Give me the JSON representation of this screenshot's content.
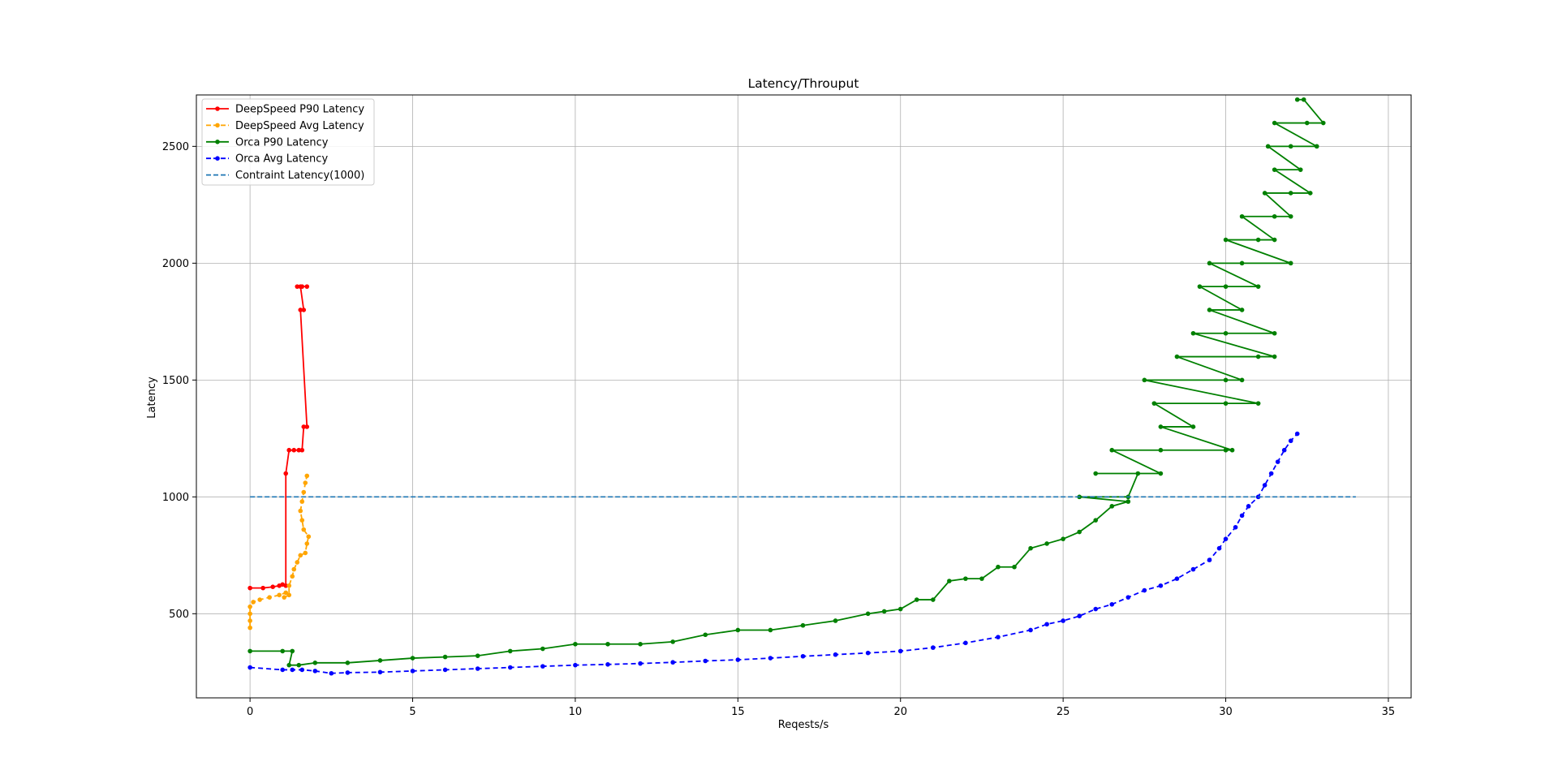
{
  "chart_data": {
    "type": "line",
    "title": "Latency/Throuput",
    "xlabel": "Reqests/s",
    "ylabel": "Latency",
    "xlim": [
      -1.65,
      35.7
    ],
    "ylim": [
      140,
      2720
    ],
    "xticks": [
      0,
      5,
      10,
      15,
      20,
      25,
      30,
      35
    ],
    "yticks": [
      500,
      1000,
      1500,
      2000,
      2500
    ],
    "grid": true,
    "legend_position": "upper-left",
    "series": [
      {
        "name": "DeepSpeed P90 Latency",
        "color": "#ff0000",
        "linestyle": "solid",
        "points": [
          [
            0,
            610
          ],
          [
            0.4,
            610
          ],
          [
            0.7,
            615
          ],
          [
            0.9,
            620
          ],
          [
            1.0,
            625
          ],
          [
            1.1,
            620
          ],
          [
            1.1,
            1100
          ],
          [
            1.2,
            1200
          ],
          [
            1.35,
            1200
          ],
          [
            1.5,
            1200
          ],
          [
            1.6,
            1200
          ],
          [
            1.65,
            1300
          ],
          [
            1.75,
            1300
          ],
          [
            1.55,
            1800
          ],
          [
            1.65,
            1800
          ],
          [
            1.55,
            1900
          ],
          [
            1.45,
            1900
          ],
          [
            1.6,
            1900
          ],
          [
            1.75,
            1900
          ]
        ]
      },
      {
        "name": "DeepSpeed Avg Latency",
        "color": "#ffa500",
        "linestyle": "dashed",
        "points": [
          [
            0,
            440
          ],
          [
            0,
            470
          ],
          [
            0,
            500
          ],
          [
            0,
            530
          ],
          [
            0.1,
            550
          ],
          [
            0.3,
            560
          ],
          [
            0.6,
            570
          ],
          [
            0.9,
            580
          ],
          [
            1.1,
            590
          ],
          [
            1.05,
            570
          ],
          [
            1.2,
            580
          ],
          [
            1.2,
            620
          ],
          [
            1.3,
            660
          ],
          [
            1.35,
            690
          ],
          [
            1.45,
            720
          ],
          [
            1.55,
            750
          ],
          [
            1.7,
            760
          ],
          [
            1.75,
            800
          ],
          [
            1.8,
            830
          ],
          [
            1.65,
            860
          ],
          [
            1.6,
            900
          ],
          [
            1.55,
            940
          ],
          [
            1.6,
            980
          ],
          [
            1.65,
            1020
          ],
          [
            1.7,
            1060
          ],
          [
            1.75,
            1090
          ]
        ]
      },
      {
        "name": "Orca P90 Latency",
        "color": "#008000",
        "linestyle": "solid",
        "points": [
          [
            0,
            340
          ],
          [
            1.0,
            340
          ],
          [
            1.3,
            340
          ],
          [
            1.2,
            280
          ],
          [
            1.5,
            280
          ],
          [
            2,
            290
          ],
          [
            3,
            290
          ],
          [
            4,
            300
          ],
          [
            5,
            310
          ],
          [
            6,
            315
          ],
          [
            7,
            320
          ],
          [
            8,
            340
          ],
          [
            9,
            350
          ],
          [
            10,
            370
          ],
          [
            11,
            370
          ],
          [
            12,
            370
          ],
          [
            13,
            380
          ],
          [
            14,
            410
          ],
          [
            15,
            430
          ],
          [
            16,
            430
          ],
          [
            17,
            450
          ],
          [
            18,
            470
          ],
          [
            19,
            500
          ],
          [
            19.5,
            510
          ],
          [
            20,
            520
          ],
          [
            20.5,
            560
          ],
          [
            21,
            560
          ],
          [
            21.5,
            640
          ],
          [
            22,
            650
          ],
          [
            22.5,
            650
          ],
          [
            23,
            700
          ],
          [
            23.5,
            700
          ],
          [
            24,
            780
          ],
          [
            24.5,
            800
          ],
          [
            25,
            820
          ],
          [
            25.5,
            850
          ],
          [
            26,
            900
          ],
          [
            26.5,
            960
          ],
          [
            27,
            980
          ],
          [
            25.5,
            1000
          ],
          [
            27,
            1000
          ],
          [
            27.3,
            1100
          ],
          [
            26,
            1100
          ],
          [
            28,
            1100
          ],
          [
            26.5,
            1200
          ],
          [
            28,
            1200
          ],
          [
            30,
            1200
          ],
          [
            30.2,
            1200
          ],
          [
            28,
            1300
          ],
          [
            29,
            1300
          ],
          [
            27.8,
            1400
          ],
          [
            30,
            1400
          ],
          [
            31,
            1400
          ],
          [
            27.5,
            1500
          ],
          [
            30,
            1500
          ],
          [
            30.5,
            1500
          ],
          [
            28.5,
            1600
          ],
          [
            31,
            1600
          ],
          [
            31.5,
            1600
          ],
          [
            29,
            1700
          ],
          [
            30,
            1700
          ],
          [
            31.5,
            1700
          ],
          [
            29.5,
            1800
          ],
          [
            30.5,
            1800
          ],
          [
            29.2,
            1900
          ],
          [
            30,
            1900
          ],
          [
            31,
            1900
          ],
          [
            29.5,
            2000
          ],
          [
            30.5,
            2000
          ],
          [
            32,
            2000
          ],
          [
            30,
            2100
          ],
          [
            31,
            2100
          ],
          [
            31.5,
            2100
          ],
          [
            30.5,
            2200
          ],
          [
            31.5,
            2200
          ],
          [
            32,
            2200
          ],
          [
            31.2,
            2300
          ],
          [
            32,
            2300
          ],
          [
            32.6,
            2300
          ],
          [
            31.5,
            2400
          ],
          [
            32.3,
            2400
          ],
          [
            31.3,
            2500
          ],
          [
            32,
            2500
          ],
          [
            32.8,
            2500
          ],
          [
            31.5,
            2600
          ],
          [
            32.5,
            2600
          ],
          [
            33,
            2600
          ],
          [
            32.4,
            2700
          ],
          [
            32.2,
            2700
          ]
        ]
      },
      {
        "name": "Orca Avg Latency",
        "color": "#0000ff",
        "linestyle": "dashed",
        "points": [
          [
            0,
            270
          ],
          [
            1,
            260
          ],
          [
            1.3,
            260
          ],
          [
            1.6,
            260
          ],
          [
            2,
            255
          ],
          [
            2.5,
            245
          ],
          [
            3,
            248
          ],
          [
            4,
            250
          ],
          [
            5,
            255
          ],
          [
            6,
            260
          ],
          [
            7,
            265
          ],
          [
            8,
            270
          ],
          [
            9,
            275
          ],
          [
            10,
            280
          ],
          [
            11,
            283
          ],
          [
            12,
            287
          ],
          [
            13,
            292
          ],
          [
            14,
            298
          ],
          [
            15,
            303
          ],
          [
            16,
            310
          ],
          [
            17,
            318
          ],
          [
            18,
            325
          ],
          [
            19,
            332
          ],
          [
            20,
            340
          ],
          [
            21,
            355
          ],
          [
            22,
            375
          ],
          [
            23,
            400
          ],
          [
            24,
            430
          ],
          [
            24.5,
            455
          ],
          [
            25,
            470
          ],
          [
            25.5,
            490
          ],
          [
            26,
            520
          ],
          [
            26.5,
            540
          ],
          [
            27,
            570
          ],
          [
            27.5,
            600
          ],
          [
            28,
            620
          ],
          [
            28.5,
            650
          ],
          [
            29,
            690
          ],
          [
            29.5,
            730
          ],
          [
            29.8,
            780
          ],
          [
            30,
            820
          ],
          [
            30.3,
            870
          ],
          [
            30.5,
            920
          ],
          [
            30.7,
            960
          ],
          [
            31,
            1000
          ],
          [
            31.2,
            1050
          ],
          [
            31.4,
            1100
          ],
          [
            31.6,
            1150
          ],
          [
            31.8,
            1200
          ],
          [
            32,
            1240
          ],
          [
            32.2,
            1270
          ]
        ]
      },
      {
        "name": "Contraint Latency(1000)",
        "color": "#1f77b4",
        "linestyle": "dashed",
        "points": [
          [
            0,
            1000
          ],
          [
            34,
            1000
          ]
        ]
      }
    ]
  }
}
